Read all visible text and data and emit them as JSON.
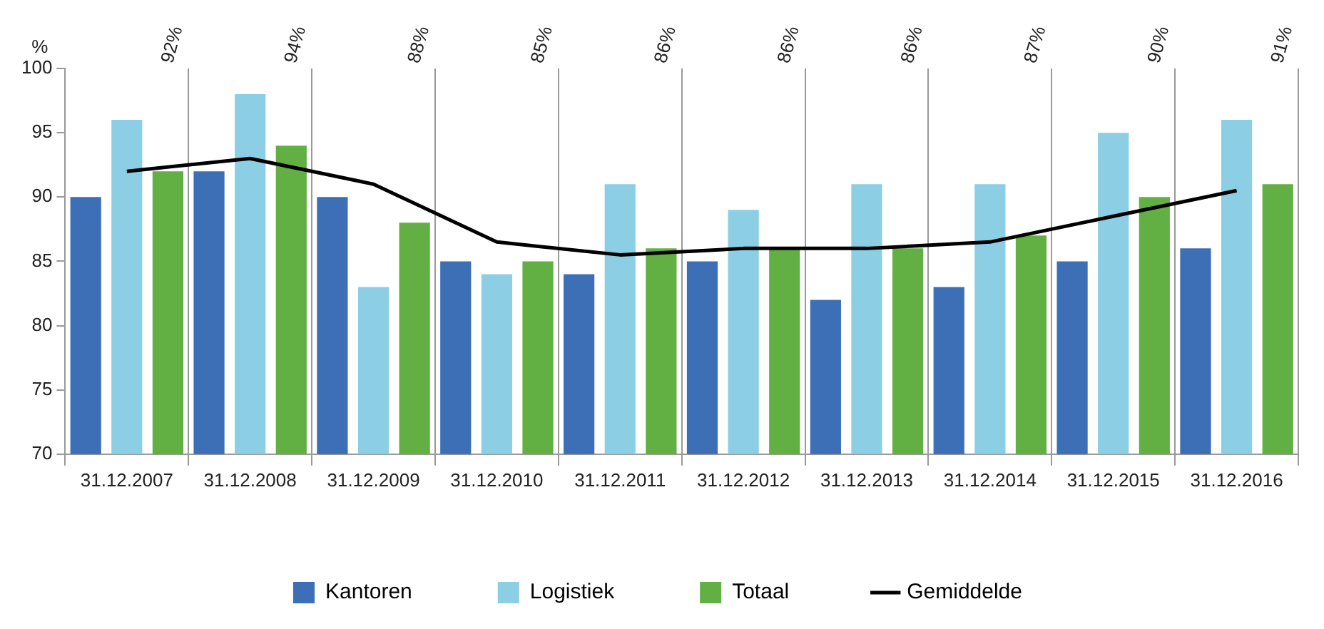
{
  "chart_data": {
    "type": "bar",
    "ylabel": "%",
    "categories": [
      "31.12.2007",
      "31.12.2008",
      "31.12.2009",
      "31.12.2010",
      "31.12.2011",
      "31.12.2012",
      "31.12.2013",
      "31.12.2014",
      "31.12.2015",
      "31.12.2016"
    ],
    "series": [
      {
        "name": "Kantoren",
        "color": "#3d6fb6",
        "values": [
          90,
          92,
          90,
          85,
          84,
          85,
          82,
          83,
          85,
          86
        ]
      },
      {
        "name": "Logistiek",
        "color": "#8ccfe4",
        "values": [
          96,
          98,
          83,
          84,
          91,
          89,
          91,
          91,
          95,
          96
        ]
      },
      {
        "name": "Totaal",
        "color": "#62b043",
        "values": [
          92,
          94,
          88,
          85,
          86,
          86,
          86,
          87,
          90,
          91
        ]
      },
      {
        "name": "Gemiddelde",
        "type": "line",
        "color": "#000000",
        "values": [
          92,
          93,
          91,
          86.5,
          85.5,
          86,
          86,
          86.5,
          88.5,
          90.5
        ]
      }
    ],
    "annotations": [
      "92%",
      "94%",
      "88%",
      "85%",
      "86%",
      "86%",
      "86%",
      "87%",
      "90%",
      "91%"
    ],
    "ylim": [
      70,
      100
    ],
    "yticks": [
      70,
      75,
      80,
      85,
      90,
      95,
      100
    ],
    "grid": "x",
    "legend": "bottom",
    "marker": "none",
    "line_style": "solid"
  }
}
